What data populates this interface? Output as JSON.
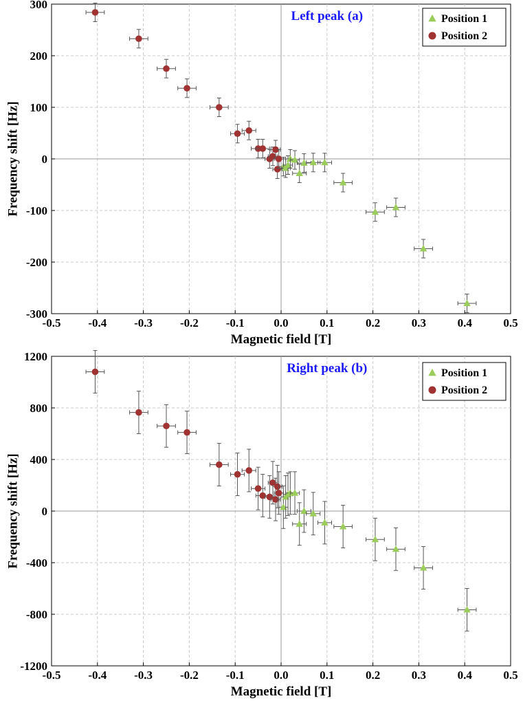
{
  "colors": {
    "series1": "#9acd5a",
    "series2": "#a03232",
    "title": "#1a1aff",
    "grid": "#c8c8c8",
    "errorbar": "#555555"
  },
  "chart_data": [
    {
      "type": "scatter",
      "title": "Left peak (a)",
      "xlabel": "Magnetic field [T]",
      "ylabel": "Frequency shift [Hz]",
      "xlim": [
        -0.5,
        0.5
      ],
      "ylim": [
        -300,
        300
      ],
      "xticks": [
        -0.5,
        -0.4,
        -0.3,
        -0.2,
        -0.1,
        0.0,
        0.1,
        0.2,
        0.3,
        0.4,
        0.5
      ],
      "xtick_labels": [
        "-0.5",
        "-0.4",
        "-0.3",
        "-0.2",
        "-0.1",
        "0.0",
        "0.1",
        "0.2",
        "0.3",
        "0.4",
        "0.5"
      ],
      "yticks": [
        -300,
        -200,
        -100,
        0,
        100,
        200,
        300
      ],
      "ytick_labels": [
        "-300",
        "-200",
        "-100",
        "0",
        "100",
        "200",
        "300"
      ],
      "grid": true,
      "legend_position": "top-right",
      "series": [
        {
          "name": "Position 1",
          "marker": "triangle",
          "points": [
            {
              "x": 0.005,
              "y": -15,
              "xerr": 0.01,
              "yerr": 18
            },
            {
              "x": 0.01,
              "y": -18,
              "xerr": 0.01,
              "yerr": 18
            },
            {
              "x": 0.015,
              "y": -12,
              "xerr": 0.01,
              "yerr": 18
            },
            {
              "x": 0.02,
              "y": 0,
              "xerr": 0.01,
              "yerr": 18
            },
            {
              "x": 0.03,
              "y": -2,
              "xerr": 0.01,
              "yerr": 18
            },
            {
              "x": 0.04,
              "y": -28,
              "xerr": 0.015,
              "yerr": 18
            },
            {
              "x": 0.05,
              "y": -8,
              "xerr": 0.015,
              "yerr": 18
            },
            {
              "x": 0.07,
              "y": -7,
              "xerr": 0.015,
              "yerr": 18
            },
            {
              "x": 0.095,
              "y": -7,
              "xerr": 0.015,
              "yerr": 18
            },
            {
              "x": 0.135,
              "y": -46,
              "xerr": 0.02,
              "yerr": 18
            },
            {
              "x": 0.205,
              "y": -103,
              "xerr": 0.02,
              "yerr": 18
            },
            {
              "x": 0.25,
              "y": -94,
              "xerr": 0.02,
              "yerr": 18
            },
            {
              "x": 0.31,
              "y": -174,
              "xerr": 0.02,
              "yerr": 18
            },
            {
              "x": 0.405,
              "y": -280,
              "xerr": 0.02,
              "yerr": 18
            }
          ]
        },
        {
          "name": "Position 2",
          "marker": "circle",
          "points": [
            {
              "x": -0.405,
              "y": 284,
              "xerr": 0.02,
              "yerr": 18
            },
            {
              "x": -0.31,
              "y": 233,
              "xerr": 0.02,
              "yerr": 18
            },
            {
              "x": -0.25,
              "y": 175,
              "xerr": 0.02,
              "yerr": 18
            },
            {
              "x": -0.205,
              "y": 137,
              "xerr": 0.02,
              "yerr": 18
            },
            {
              "x": -0.135,
              "y": 100,
              "xerr": 0.02,
              "yerr": 18
            },
            {
              "x": -0.095,
              "y": 49,
              "xerr": 0.015,
              "yerr": 18
            },
            {
              "x": -0.07,
              "y": 55,
              "xerr": 0.015,
              "yerr": 18
            },
            {
              "x": -0.05,
              "y": 20,
              "xerr": 0.015,
              "yerr": 18
            },
            {
              "x": -0.04,
              "y": 20,
              "xerr": 0.015,
              "yerr": 18
            },
            {
              "x": -0.025,
              "y": 0,
              "xerr": 0.01,
              "yerr": 18
            },
            {
              "x": -0.018,
              "y": 5,
              "xerr": 0.01,
              "yerr": 18
            },
            {
              "x": -0.012,
              "y": 18,
              "xerr": 0.01,
              "yerr": 18
            },
            {
              "x": -0.008,
              "y": -20,
              "xerr": 0.01,
              "yerr": 18
            },
            {
              "x": -0.005,
              "y": 0,
              "xerr": 0.01,
              "yerr": 18
            }
          ]
        }
      ]
    },
    {
      "type": "scatter",
      "title": "Right peak (b)",
      "xlabel": "Magnetic field [T]",
      "ylabel": "Frequency shift [Hz]",
      "xlim": [
        -0.5,
        0.5
      ],
      "ylim": [
        -1200,
        1200
      ],
      "xticks": [
        -0.5,
        -0.4,
        -0.3,
        -0.2,
        -0.1,
        0.0,
        0.1,
        0.2,
        0.3,
        0.4,
        0.5
      ],
      "xtick_labels": [
        "-0.5",
        "-0.4",
        "-0.3",
        "-0.2",
        "-0.1",
        "0.0",
        "0.1",
        "0.2",
        "0.3",
        "0.4",
        "0.5"
      ],
      "yticks": [
        -1200,
        -800,
        -400,
        0,
        400,
        800,
        1200
      ],
      "ytick_labels": [
        "-1200",
        "-800",
        "-400",
        "0",
        "400",
        "800",
        "1200"
      ],
      "grid": true,
      "legend_position": "top-right",
      "series": [
        {
          "name": "Position 1",
          "marker": "triangle",
          "points": [
            {
              "x": 0.005,
              "y": 30,
              "xerr": 0.01,
              "yerr": 165
            },
            {
              "x": 0.01,
              "y": 110,
              "xerr": 0.01,
              "yerr": 165
            },
            {
              "x": 0.015,
              "y": 130,
              "xerr": 0.01,
              "yerr": 165
            },
            {
              "x": 0.02,
              "y": 140,
              "xerr": 0.01,
              "yerr": 165
            },
            {
              "x": 0.03,
              "y": 140,
              "xerr": 0.01,
              "yerr": 165
            },
            {
              "x": 0.04,
              "y": -100,
              "xerr": 0.015,
              "yerr": 165
            },
            {
              "x": 0.05,
              "y": 0,
              "xerr": 0.015,
              "yerr": 165
            },
            {
              "x": 0.07,
              "y": -20,
              "xerr": 0.015,
              "yerr": 165
            },
            {
              "x": 0.095,
              "y": -90,
              "xerr": 0.015,
              "yerr": 165
            },
            {
              "x": 0.135,
              "y": -120,
              "xerr": 0.02,
              "yerr": 165
            },
            {
              "x": 0.205,
              "y": -220,
              "xerr": 0.02,
              "yerr": 165
            },
            {
              "x": 0.25,
              "y": -295,
              "xerr": 0.02,
              "yerr": 165
            },
            {
              "x": 0.31,
              "y": -440,
              "xerr": 0.02,
              "yerr": 165
            },
            {
              "x": 0.405,
              "y": -765,
              "xerr": 0.02,
              "yerr": 165
            }
          ]
        },
        {
          "name": "Position 2",
          "marker": "circle",
          "points": [
            {
              "x": -0.405,
              "y": 1080,
              "xerr": 0.02,
              "yerr": 165
            },
            {
              "x": -0.31,
              "y": 765,
              "xerr": 0.02,
              "yerr": 165
            },
            {
              "x": -0.25,
              "y": 660,
              "xerr": 0.02,
              "yerr": 165
            },
            {
              "x": -0.205,
              "y": 610,
              "xerr": 0.02,
              "yerr": 165
            },
            {
              "x": -0.135,
              "y": 360,
              "xerr": 0.02,
              "yerr": 165
            },
            {
              "x": -0.095,
              "y": 285,
              "xerr": 0.015,
              "yerr": 165
            },
            {
              "x": -0.07,
              "y": 315,
              "xerr": 0.015,
              "yerr": 165
            },
            {
              "x": -0.05,
              "y": 175,
              "xerr": 0.015,
              "yerr": 165
            },
            {
              "x": -0.04,
              "y": 120,
              "xerr": 0.015,
              "yerr": 165
            },
            {
              "x": -0.025,
              "y": 110,
              "xerr": 0.01,
              "yerr": 165
            },
            {
              "x": -0.018,
              "y": 220,
              "xerr": 0.01,
              "yerr": 165
            },
            {
              "x": -0.012,
              "y": 90,
              "xerr": 0.01,
              "yerr": 165
            },
            {
              "x": -0.008,
              "y": 190,
              "xerr": 0.01,
              "yerr": 165
            },
            {
              "x": -0.005,
              "y": 140,
              "xerr": 0.01,
              "yerr": 165
            }
          ]
        }
      ]
    }
  ]
}
